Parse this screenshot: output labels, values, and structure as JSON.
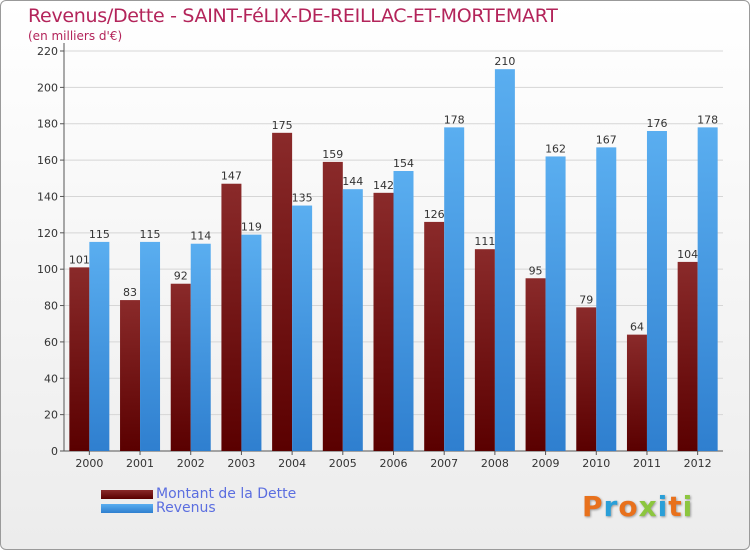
{
  "header": {
    "title": "Revenus/Dette - SAINT-FéLIX-DE-REILLAC-ET-MORTEMART",
    "subtitle": "(en milliers d'€)"
  },
  "legend": {
    "debt_label": "Montant de la Dette",
    "revenue_label": "Revenus"
  },
  "logo": {
    "text": "Proxiti"
  },
  "colors": {
    "debt_top": "#8a2a2a",
    "debt_bottom": "#5a0000",
    "revenue_top": "#5aaef0",
    "revenue_bottom": "#2f7fcf",
    "title": "#b3245a",
    "legend_text": "#5b6ee0"
  },
  "chart_data": {
    "type": "bar",
    "title": "Revenus/Dette - SAINT-FéLIX-DE-REILLAC-ET-MORTEMART",
    "ylabel": "(en milliers d'€)",
    "xlabel": "",
    "ylim": [
      0,
      220
    ],
    "yticks": [
      0,
      20,
      40,
      60,
      80,
      100,
      120,
      140,
      160,
      180,
      200,
      220
    ],
    "grid": true,
    "legend_position": "bottom-left",
    "categories": [
      "2000",
      "2001",
      "2002",
      "2003",
      "2004",
      "2005",
      "2006",
      "2007",
      "2008",
      "2009",
      "2010",
      "2011",
      "2012"
    ],
    "series": [
      {
        "name": "Montant de la Dette",
        "values": [
          101,
          83,
          92,
          147,
          175,
          159,
          142,
          126,
          111,
          95,
          79,
          64,
          104
        ]
      },
      {
        "name": "Revenus",
        "values": [
          115,
          115,
          114,
          119,
          135,
          144,
          154,
          178,
          210,
          162,
          167,
          176,
          178
        ]
      }
    ]
  }
}
